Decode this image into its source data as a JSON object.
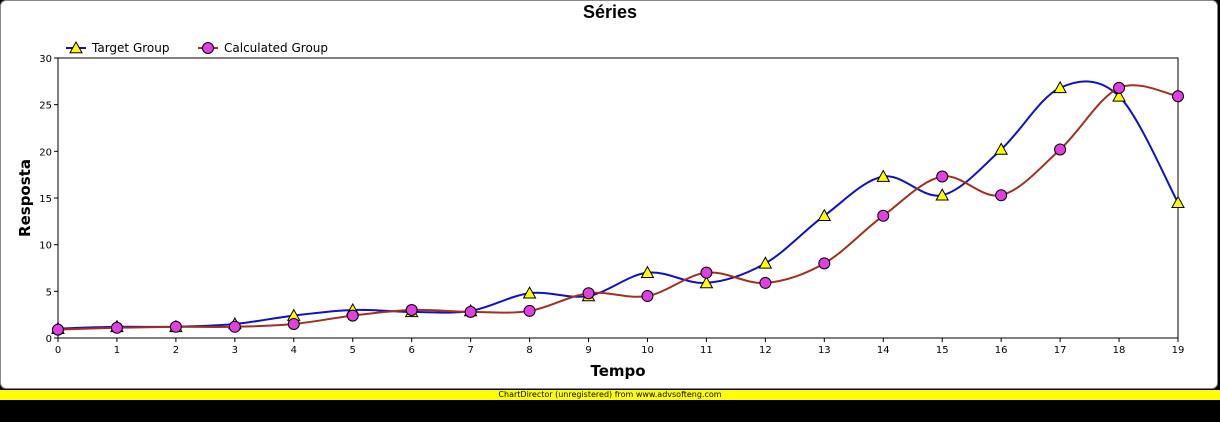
{
  "colors": {
    "target_line": "#1010c8",
    "target_marker": "#ffff00",
    "calculated_line": "#a03020",
    "calculated_marker": "#e040e0",
    "banner": "#ffff00"
  },
  "banner_text": "ChartDirector (unregistered) from www.advsofteng.com",
  "chart_data": {
    "type": "line",
    "title": "Séries",
    "xlabel": "Tempo",
    "ylabel": "Resposta",
    "x": [
      0,
      1,
      2,
      3,
      4,
      5,
      6,
      7,
      8,
      9,
      10,
      11,
      12,
      13,
      14,
      15,
      16,
      17,
      18,
      19
    ],
    "xlim": [
      0,
      19
    ],
    "ylim": [
      0,
      30
    ],
    "yticks": [
      0,
      5,
      10,
      15,
      20,
      25,
      30
    ],
    "grid": false,
    "legend": "top-left",
    "smooth": true,
    "series": [
      {
        "name": "Target Group",
        "marker": "triangle",
        "values": [
          1,
          1.2,
          1.2,
          1.5,
          2.4,
          3.0,
          2.8,
          2.9,
          4.8,
          4.5,
          7.0,
          5.9,
          8.0,
          13.1,
          17.3,
          15.3,
          20.2,
          26.8,
          25.9,
          14.5
        ]
      },
      {
        "name": "Calculated Group",
        "marker": "circle",
        "values": [
          0.9,
          1.1,
          1.2,
          1.2,
          1.5,
          2.4,
          3.0,
          2.8,
          2.9,
          4.8,
          4.5,
          7.0,
          5.9,
          8.0,
          13.1,
          17.3,
          15.3,
          20.2,
          26.8,
          25.9
        ]
      }
    ]
  }
}
